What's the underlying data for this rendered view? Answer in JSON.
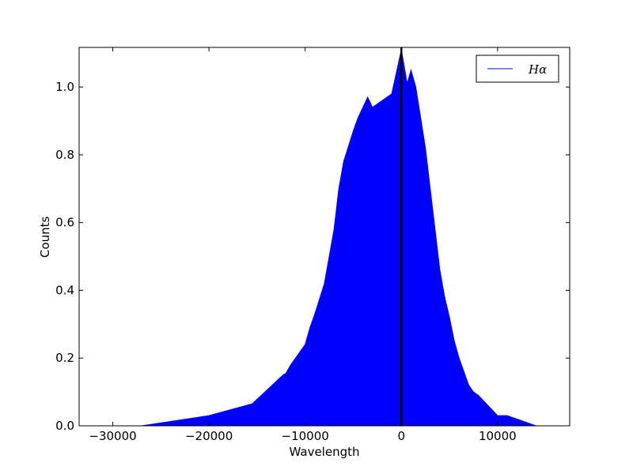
{
  "chart_data": {
    "type": "area",
    "xlabel": "Wavelength",
    "ylabel": "Counts",
    "series": [
      {
        "name": "Hα",
        "color": "#0000ff",
        "x": [
          -33500,
          -27000,
          -20000,
          -15500,
          -12300,
          -12000,
          -11500,
          -11000,
          -10000,
          -9500,
          -9000,
          -8000,
          -7500,
          -7000,
          -6500,
          -6000,
          -5000,
          -4500,
          -4000,
          -3500,
          -3000,
          -2000,
          -1000,
          0,
          600,
          1000,
          1500,
          2500,
          3000,
          3500,
          4000,
          4500,
          5000,
          5500,
          6000,
          7000,
          7500,
          8000,
          10000,
          11000,
          14000,
          17500
        ],
        "values": [
          0.0,
          0.0,
          0.03,
          0.065,
          0.15,
          0.155,
          0.18,
          0.2,
          0.24,
          0.29,
          0.33,
          0.42,
          0.5,
          0.58,
          0.7,
          0.78,
          0.87,
          0.91,
          0.94,
          0.97,
          0.94,
          0.96,
          0.98,
          1.11,
          1.01,
          1.05,
          1.0,
          0.82,
          0.7,
          0.58,
          0.46,
          0.38,
          0.32,
          0.25,
          0.2,
          0.12,
          0.1,
          0.09,
          0.03,
          0.03,
          0.0,
          0.0
        ]
      }
    ],
    "vline": {
      "x": 0,
      "color": "#000000"
    },
    "xlim": [
      -33500,
      17500
    ],
    "xticks": [
      {
        "value": -30000,
        "label": "−30000"
      },
      {
        "value": -20000,
        "label": "−20000"
      },
      {
        "value": -10000,
        "label": "−10000"
      },
      0,
      10000
    ],
    "ylim": [
      0,
      1.117
    ],
    "yticks": [
      {
        "value": 0,
        "label": "0.0"
      },
      0.2,
      0.4,
      0.6,
      0.8,
      {
        "value": 1,
        "label": "1.0"
      }
    ],
    "legend": "upper right"
  }
}
